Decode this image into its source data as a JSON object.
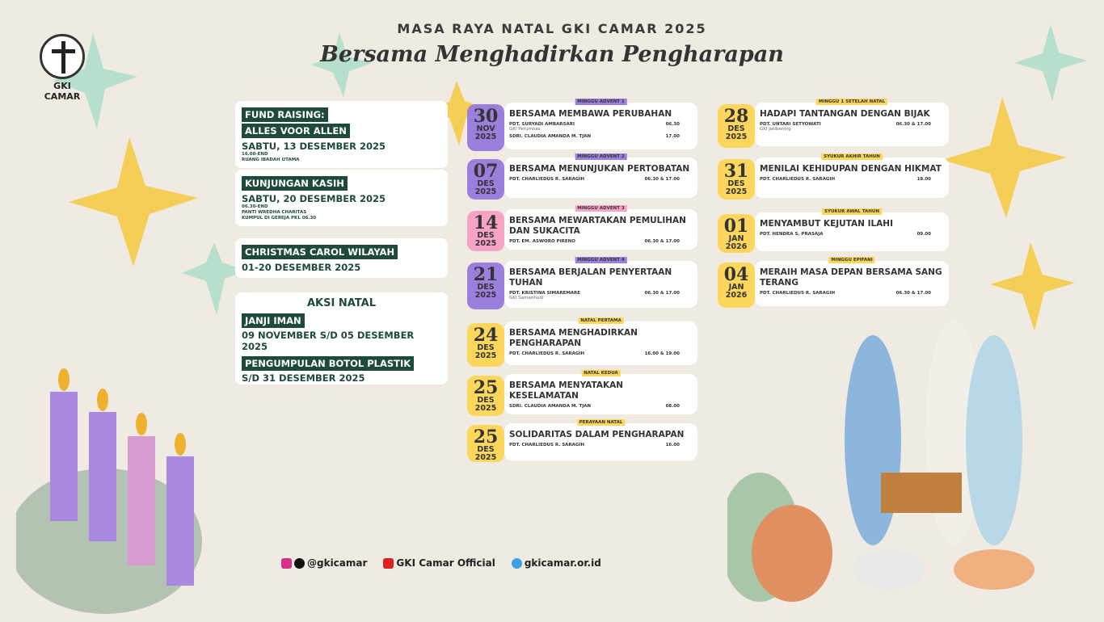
{
  "logo": {
    "text": "GKI CAMAR"
  },
  "header": {
    "title": "MASA RAYA NATAL GKI CAMAR 2025",
    "subtitle": "Bersama Menghadirkan Pengharapan"
  },
  "colors": {
    "purple": "#9b7fdc",
    "pink": "#f7a3c6",
    "yellow": "#fcd75c",
    "green": "#1e4a3a",
    "background": "#efebe3"
  },
  "events": [
    {
      "tags": [
        "FUND RAISING:",
        "ALLES VOOR ALLEN"
      ],
      "date": "SABTU, 13 DESEMBER 2025",
      "details": [
        "16.00-END",
        "RUANG IBADAH UTAMA"
      ]
    },
    {
      "tags": [
        "KUNJUNGAN KASIH"
      ],
      "date": "SABTU, 20 DESEMBER 2025",
      "details": [
        "06.30-END",
        "PANTI WREDHA CHARITAS",
        "KUMPUL DI GEREJA PKL 06.30"
      ]
    },
    {
      "tags": [
        "CHRISTMAS CAROL WILAYAH"
      ],
      "date": "01-20 DESEMBER 2025",
      "details": []
    }
  ],
  "aksi": {
    "title": "AKSI NATAL",
    "items": [
      {
        "label": "JANJI IMAN",
        "date": "09 NOVEMBER S/D 05 DESEMBER 2025"
      },
      {
        "label": "PENGUMPULAN BOTOL PLASTIK",
        "date": "S/D 31 DESEMBER 2025"
      }
    ]
  },
  "services": [
    {
      "day": "30",
      "month": "NOV",
      "year": "2025",
      "color": "purple",
      "tag": "MINGGU ADVENT 1",
      "title": "BERSAMA MEMBAWA PERUBAHAN",
      "rows": [
        {
          "name": "PDT. SURYADI AMBARSARI",
          "time": "06.30",
          "sub": "GKI Perumnas"
        },
        {
          "name": "SDRI. CLAUDIA AMANDA M. TJAN",
          "time": "17.00"
        }
      ]
    },
    {
      "day": "07",
      "month": "DES",
      "year": "2025",
      "color": "purple",
      "tag": "MINGGU ADVENT 2",
      "title": "BERSAMA MENUNJUKAN PERTOBATAN",
      "rows": [
        {
          "name": "PDT. CHARLIEDUS R. SARAGIH",
          "time": "06.30 & 17.00"
        }
      ]
    },
    {
      "day": "14",
      "month": "DES",
      "year": "2025",
      "color": "pink",
      "tag": "MINGGU ADVENT 3",
      "title": "BERSAMA MEWARTAKAN PEMULIHAN DAN SUKACITA",
      "rows": [
        {
          "name": "PDT. EM. ASWORO PIRENO",
          "time": "06.30 & 17.00"
        }
      ]
    },
    {
      "day": "21",
      "month": "DES",
      "year": "2025",
      "color": "purple",
      "tag": "MINGGU ADVENT 4",
      "title": "BERSAMA BERJALAN PENYERTAAN TUHAN",
      "rows": [
        {
          "name": "PDT. KRISTINA SIMAREMARE",
          "time": "06.30 & 17.00",
          "sub": "GKI Samanhudi"
        }
      ]
    },
    {
      "day": "24",
      "month": "DES",
      "year": "2025",
      "color": "yellow",
      "tag": "NATAL PERTAMA",
      "title": "BERSAMA MENGHADIRKAN PENGHARAPAN",
      "rows": [
        {
          "name": "PDT. CHARLIEDUS R. SARAGIH",
          "time": "16.00 & 19.00"
        }
      ]
    },
    {
      "day": "25",
      "month": "DES",
      "year": "2025",
      "color": "yellow",
      "tag": "NATAL KEDUA",
      "title": "BERSAMA MENYATAKAN KESELAMATAN",
      "rows": [
        {
          "name": "SDRI. CLAUDIA AMANDA M. TJAN",
          "time": "08.00"
        }
      ]
    },
    {
      "day": "25",
      "month": "DES",
      "year": "2025",
      "color": "yellow",
      "tag": "PERAYAAN NATAL",
      "title": "SOLIDARITAS DALAM PENGHARAPAN",
      "rows": [
        {
          "name": "PDT. CHARLIEDUS R. SARAGIH",
          "time": "16.00"
        }
      ]
    },
    {
      "day": "28",
      "month": "DES",
      "year": "2025",
      "color": "yellow",
      "tag": "MINGGU 1 SETELAH NATAL",
      "title": "HADAPI TANTANGAN DENGAN BIJAK",
      "rows": [
        {
          "name": "PDT. UNTARI SETYOWATI",
          "time": "06.30 & 17.00",
          "sub": "GKI Jatibening"
        }
      ]
    },
    {
      "day": "31",
      "month": "DES",
      "year": "2025",
      "color": "yellow",
      "tag": "SYUKUR AKHIR TAHUN",
      "title": "MENILAI KEHIDUPAN DENGAN HIKMAT",
      "rows": [
        {
          "name": "PDT. CHARLIEDUS R. SARAGIH",
          "time": "18.00"
        }
      ]
    },
    {
      "day": "01",
      "month": "JAN",
      "year": "2026",
      "color": "yellow",
      "tag": "SYUKUR AWAL TAHUN",
      "title": "MENYAMBUT KEJUTAN ILAHI",
      "rows": [
        {
          "name": "PDT. HENDRA S. PRASAJA",
          "time": "09.00"
        }
      ]
    },
    {
      "day": "04",
      "month": "JAN",
      "year": "2026",
      "color": "yellow",
      "tag": "MINGGU EPIFANI",
      "title": "MERAIH MASA DEPAN BERSAMA SANG TERANG",
      "rows": [
        {
          "name": "PDT. CHARLIEDUS R. SARAGIH",
          "time": "06.30 & 17.00"
        }
      ]
    }
  ],
  "footer": {
    "instagram_tiktok": "@gkicamar",
    "youtube": "GKI Camar Official",
    "website": "gkicamar.or.id"
  }
}
